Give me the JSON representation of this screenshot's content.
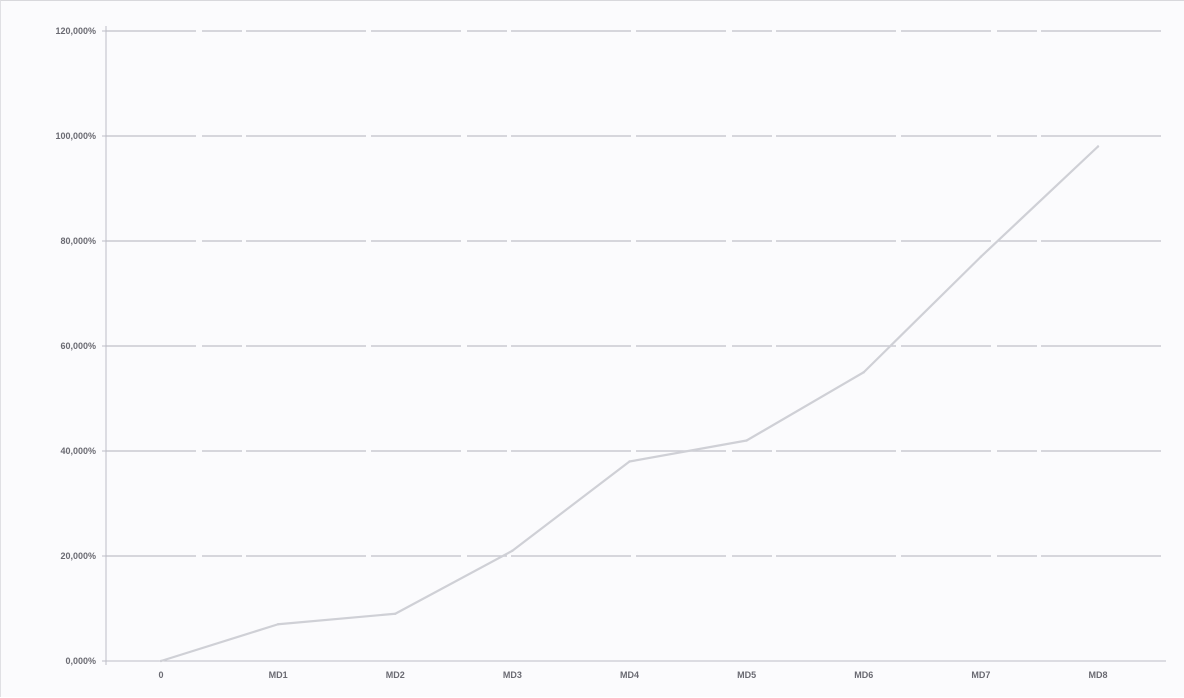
{
  "chart_data": {
    "type": "line",
    "title": "",
    "xlabel": "",
    "ylabel": "",
    "categories": [
      "0",
      "MD1",
      "MD2",
      "MD3",
      "MD4",
      "MD5",
      "MD6",
      "MD7",
      "MD8"
    ],
    "y_tick_labels": [
      "0,000%",
      "20,000%",
      "40,000%",
      "60,000%",
      "80,000%",
      "100,000%",
      "120,000%"
    ],
    "ylim": [
      0,
      120
    ],
    "y_ticks": [
      0,
      20,
      40,
      60,
      80,
      100,
      120
    ],
    "grid": true,
    "legend": "none",
    "series": [
      {
        "values": [
          0,
          7,
          9,
          21,
          38,
          42,
          55,
          77,
          98
        ]
      }
    ],
    "colors": {
      "line": "#cfd0d6",
      "grid": "#c9c9d2",
      "background": "#fbfbfd"
    }
  }
}
